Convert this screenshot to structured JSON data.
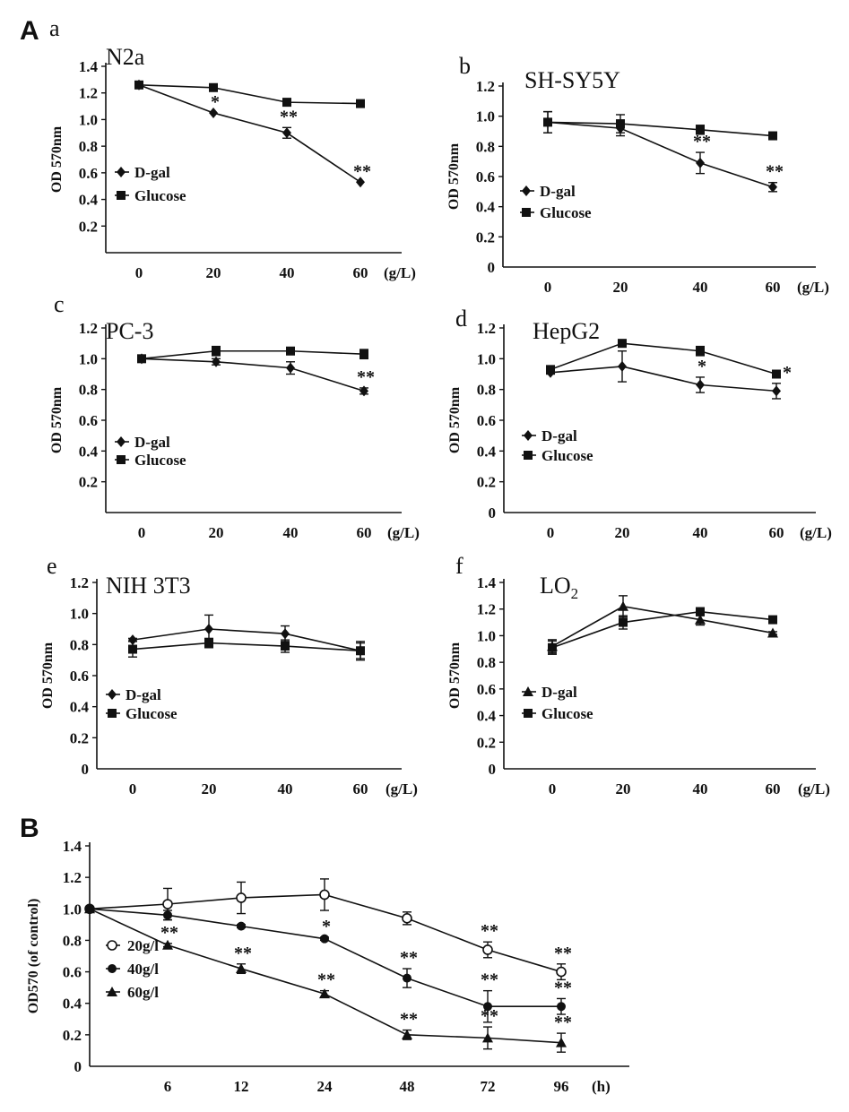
{
  "figure_labels": [
    "A",
    "B"
  ],
  "chart_data": [
    {
      "id": "a",
      "type": "line",
      "panel_letter": "a",
      "title": "N2a",
      "ylabel": "OD 570nm",
      "xlabel": "",
      "x_unit": "(g/L)",
      "x": [
        0,
        20,
        40,
        60
      ],
      "x_ticks": [
        0,
        20,
        40,
        60
      ],
      "ylim": [
        0,
        1.4
      ],
      "y_ticks": [
        0.2,
        0.4,
        0.6,
        0.8,
        1.0,
        1.2,
        1.4
      ],
      "show_y0": false,
      "legend_position": "left",
      "series": [
        {
          "name": "D-gal",
          "marker": "diamond",
          "values": [
            1.26,
            1.05,
            0.9,
            0.53
          ],
          "errors": [
            0,
            0,
            0.04,
            0
          ],
          "stars": [
            "",
            "*",
            "**",
            "**"
          ]
        },
        {
          "name": "Glucose",
          "marker": "square",
          "values": [
            1.26,
            1.24,
            1.13,
            1.12
          ],
          "errors": [
            0,
            0,
            0,
            0
          ],
          "stars": [
            "",
            "",
            "",
            ""
          ]
        }
      ]
    },
    {
      "id": "b",
      "type": "line",
      "panel_letter": "b",
      "title": "SH-SY5Y",
      "ylabel": "OD 570nm",
      "xlabel": "",
      "x_unit": "(g/L)",
      "x": [
        0,
        20,
        40,
        60
      ],
      "x_ticks": [
        0,
        20,
        40,
        60
      ],
      "ylim": [
        0,
        1.2
      ],
      "y_ticks": [
        0,
        0.2,
        0.4,
        0.6,
        0.8,
        1.0,
        1.2
      ],
      "show_y0": true,
      "legend_position": "left",
      "series": [
        {
          "name": "D-gal",
          "marker": "diamond",
          "values": [
            0.96,
            0.92,
            0.69,
            0.53
          ],
          "errors": [
            0.07,
            0.05,
            0.07,
            0.03
          ],
          "stars": [
            "",
            "",
            "**",
            "**"
          ]
        },
        {
          "name": "Glucose",
          "marker": "square",
          "values": [
            0.96,
            0.95,
            0.91,
            0.87
          ],
          "errors": [
            0.07,
            0.06,
            0.03,
            0.02
          ],
          "stars": [
            "",
            "",
            "",
            ""
          ]
        }
      ]
    },
    {
      "id": "c",
      "type": "line",
      "panel_letter": "c",
      "title": "PC-3",
      "ylabel": "OD 570nm",
      "xlabel": "",
      "x_unit": "(g/L)",
      "x": [
        0,
        20,
        40,
        60
      ],
      "x_ticks": [
        0,
        20,
        40,
        60
      ],
      "ylim": [
        0,
        1.2
      ],
      "y_ticks": [
        0.2,
        0.4,
        0.6,
        0.8,
        1.0,
        1.2
      ],
      "show_y0": false,
      "legend_position": "left",
      "series": [
        {
          "name": "D-gal",
          "marker": "diamond",
          "values": [
            1.0,
            0.98,
            0.94,
            0.79
          ],
          "errors": [
            0.02,
            0.02,
            0.04,
            0.02
          ],
          "stars": [
            "",
            "",
            "",
            "**"
          ]
        },
        {
          "name": "Glucose",
          "marker": "square",
          "values": [
            1.0,
            1.05,
            1.05,
            1.03
          ],
          "errors": [
            0.02,
            0.03,
            0.01,
            0.03
          ],
          "stars": [
            "",
            "",
            "",
            ""
          ]
        }
      ]
    },
    {
      "id": "d",
      "type": "line",
      "panel_letter": "d",
      "title": "HepG2",
      "ylabel": "OD 570nm",
      "xlabel": "",
      "x_unit": "(g/L)",
      "x": [
        0,
        20,
        40,
        60
      ],
      "x_ticks": [
        0,
        20,
        40,
        60
      ],
      "ylim": [
        0,
        1.2
      ],
      "y_ticks": [
        0,
        0.2,
        0.4,
        0.6,
        0.8,
        1.0,
        1.2
      ],
      "show_y0": true,
      "legend_position": "left",
      "series": [
        {
          "name": "D-gal",
          "marker": "diamond",
          "values": [
            0.91,
            0.95,
            0.83,
            0.79
          ],
          "errors": [
            0.01,
            0.1,
            0.05,
            0.05
          ],
          "stars": [
            "",
            "",
            "*",
            "*"
          ]
        },
        {
          "name": "Glucose",
          "marker": "square",
          "values": [
            0.93,
            1.1,
            1.05,
            0.9
          ],
          "errors": [
            0.01,
            0.01,
            0.03,
            0.02
          ],
          "stars": [
            "",
            "",
            "",
            ""
          ]
        }
      ]
    },
    {
      "id": "e",
      "type": "line",
      "panel_letter": "e",
      "title": "NIH 3T3",
      "ylabel": "OD 570nm",
      "xlabel": "",
      "x_unit": "(g/L)",
      "x": [
        0,
        20,
        40,
        60
      ],
      "x_ticks": [
        0,
        20,
        40,
        60
      ],
      "ylim": [
        0,
        1.2
      ],
      "y_ticks": [
        0,
        0.2,
        0.4,
        0.6,
        0.8,
        1.0,
        1.2
      ],
      "show_y0": true,
      "legend_position": "left",
      "series": [
        {
          "name": "D-gal",
          "marker": "diamond",
          "values": [
            0.83,
            0.9,
            0.87,
            0.76
          ],
          "errors": [
            0.01,
            0.09,
            0.05,
            0.06
          ],
          "stars": [
            "",
            "",
            "",
            ""
          ]
        },
        {
          "name": "Glucose",
          "marker": "square",
          "values": [
            0.77,
            0.81,
            0.79,
            0.76
          ],
          "errors": [
            0.05,
            0.03,
            0.04,
            0.05
          ],
          "stars": [
            "",
            "",
            "",
            ""
          ]
        }
      ]
    },
    {
      "id": "f",
      "type": "line",
      "panel_letter": "f",
      "title": "LO",
      "title_subscript": "2",
      "ylabel": "OD 570nm",
      "xlabel": "",
      "x_unit": "(g/L)",
      "x": [
        0,
        20,
        40,
        60
      ],
      "x_ticks": [
        0,
        20,
        40,
        60
      ],
      "ylim": [
        0,
        1.4
      ],
      "y_ticks": [
        0,
        0.2,
        0.4,
        0.6,
        0.8,
        1.0,
        1.2,
        1.4
      ],
      "show_y0": true,
      "legend_position": "left",
      "series": [
        {
          "name": "D-gal",
          "marker": "triangle",
          "values": [
            0.92,
            1.22,
            1.12,
            1.02
          ],
          "errors": [
            0.05,
            0.08,
            0.04,
            0.01
          ],
          "stars": [
            "",
            "",
            "",
            ""
          ]
        },
        {
          "name": "Glucose",
          "marker": "square",
          "values": [
            0.91,
            1.1,
            1.18,
            1.12
          ],
          "errors": [
            0.05,
            0.05,
            0.03,
            0.01
          ],
          "stars": [
            "",
            "",
            "",
            ""
          ]
        }
      ]
    },
    {
      "id": "B",
      "type": "line",
      "panel_letter": "",
      "title": "",
      "ylabel": "OD570 (of control)",
      "xlabel": "",
      "x_unit": "(h)",
      "x": [
        0,
        6,
        12,
        24,
        48,
        72,
        96
      ],
      "x_ticks": [
        6,
        12,
        24,
        48,
        72,
        96
      ],
      "ylim": [
        0,
        1.4
      ],
      "y_ticks": [
        0,
        0.2,
        0.4,
        0.6,
        0.8,
        1.0,
        1.2,
        1.4
      ],
      "show_y0": true,
      "legend_position": "left",
      "series": [
        {
          "name": "20g/l",
          "marker": "circle-open",
          "values": [
            1.0,
            1.03,
            1.07,
            1.09,
            0.94,
            0.74,
            0.6
          ],
          "errors": [
            0,
            0.1,
            0.1,
            0.1,
            0.04,
            0.05,
            0.05
          ],
          "stars": [
            "",
            "",
            "",
            "",
            "",
            "**",
            "**"
          ]
        },
        {
          "name": "40g/l",
          "marker": "circle",
          "values": [
            1.0,
            0.96,
            0.89,
            0.81,
            0.56,
            0.38,
            0.38
          ],
          "errors": [
            0,
            0.03,
            0.01,
            0.01,
            0.06,
            0.1,
            0.05
          ],
          "stars": [
            "",
            "",
            "",
            "*",
            "**",
            "**",
            "**"
          ]
        },
        {
          "name": "60g/l",
          "marker": "triangle",
          "values": [
            1.0,
            0.77,
            0.62,
            0.46,
            0.2,
            0.18,
            0.15
          ],
          "errors": [
            0,
            0.01,
            0.03,
            0.02,
            0.03,
            0.07,
            0.06
          ],
          "stars": [
            "",
            "**",
            "**",
            "**",
            "**",
            "**",
            "**"
          ]
        }
      ]
    }
  ]
}
